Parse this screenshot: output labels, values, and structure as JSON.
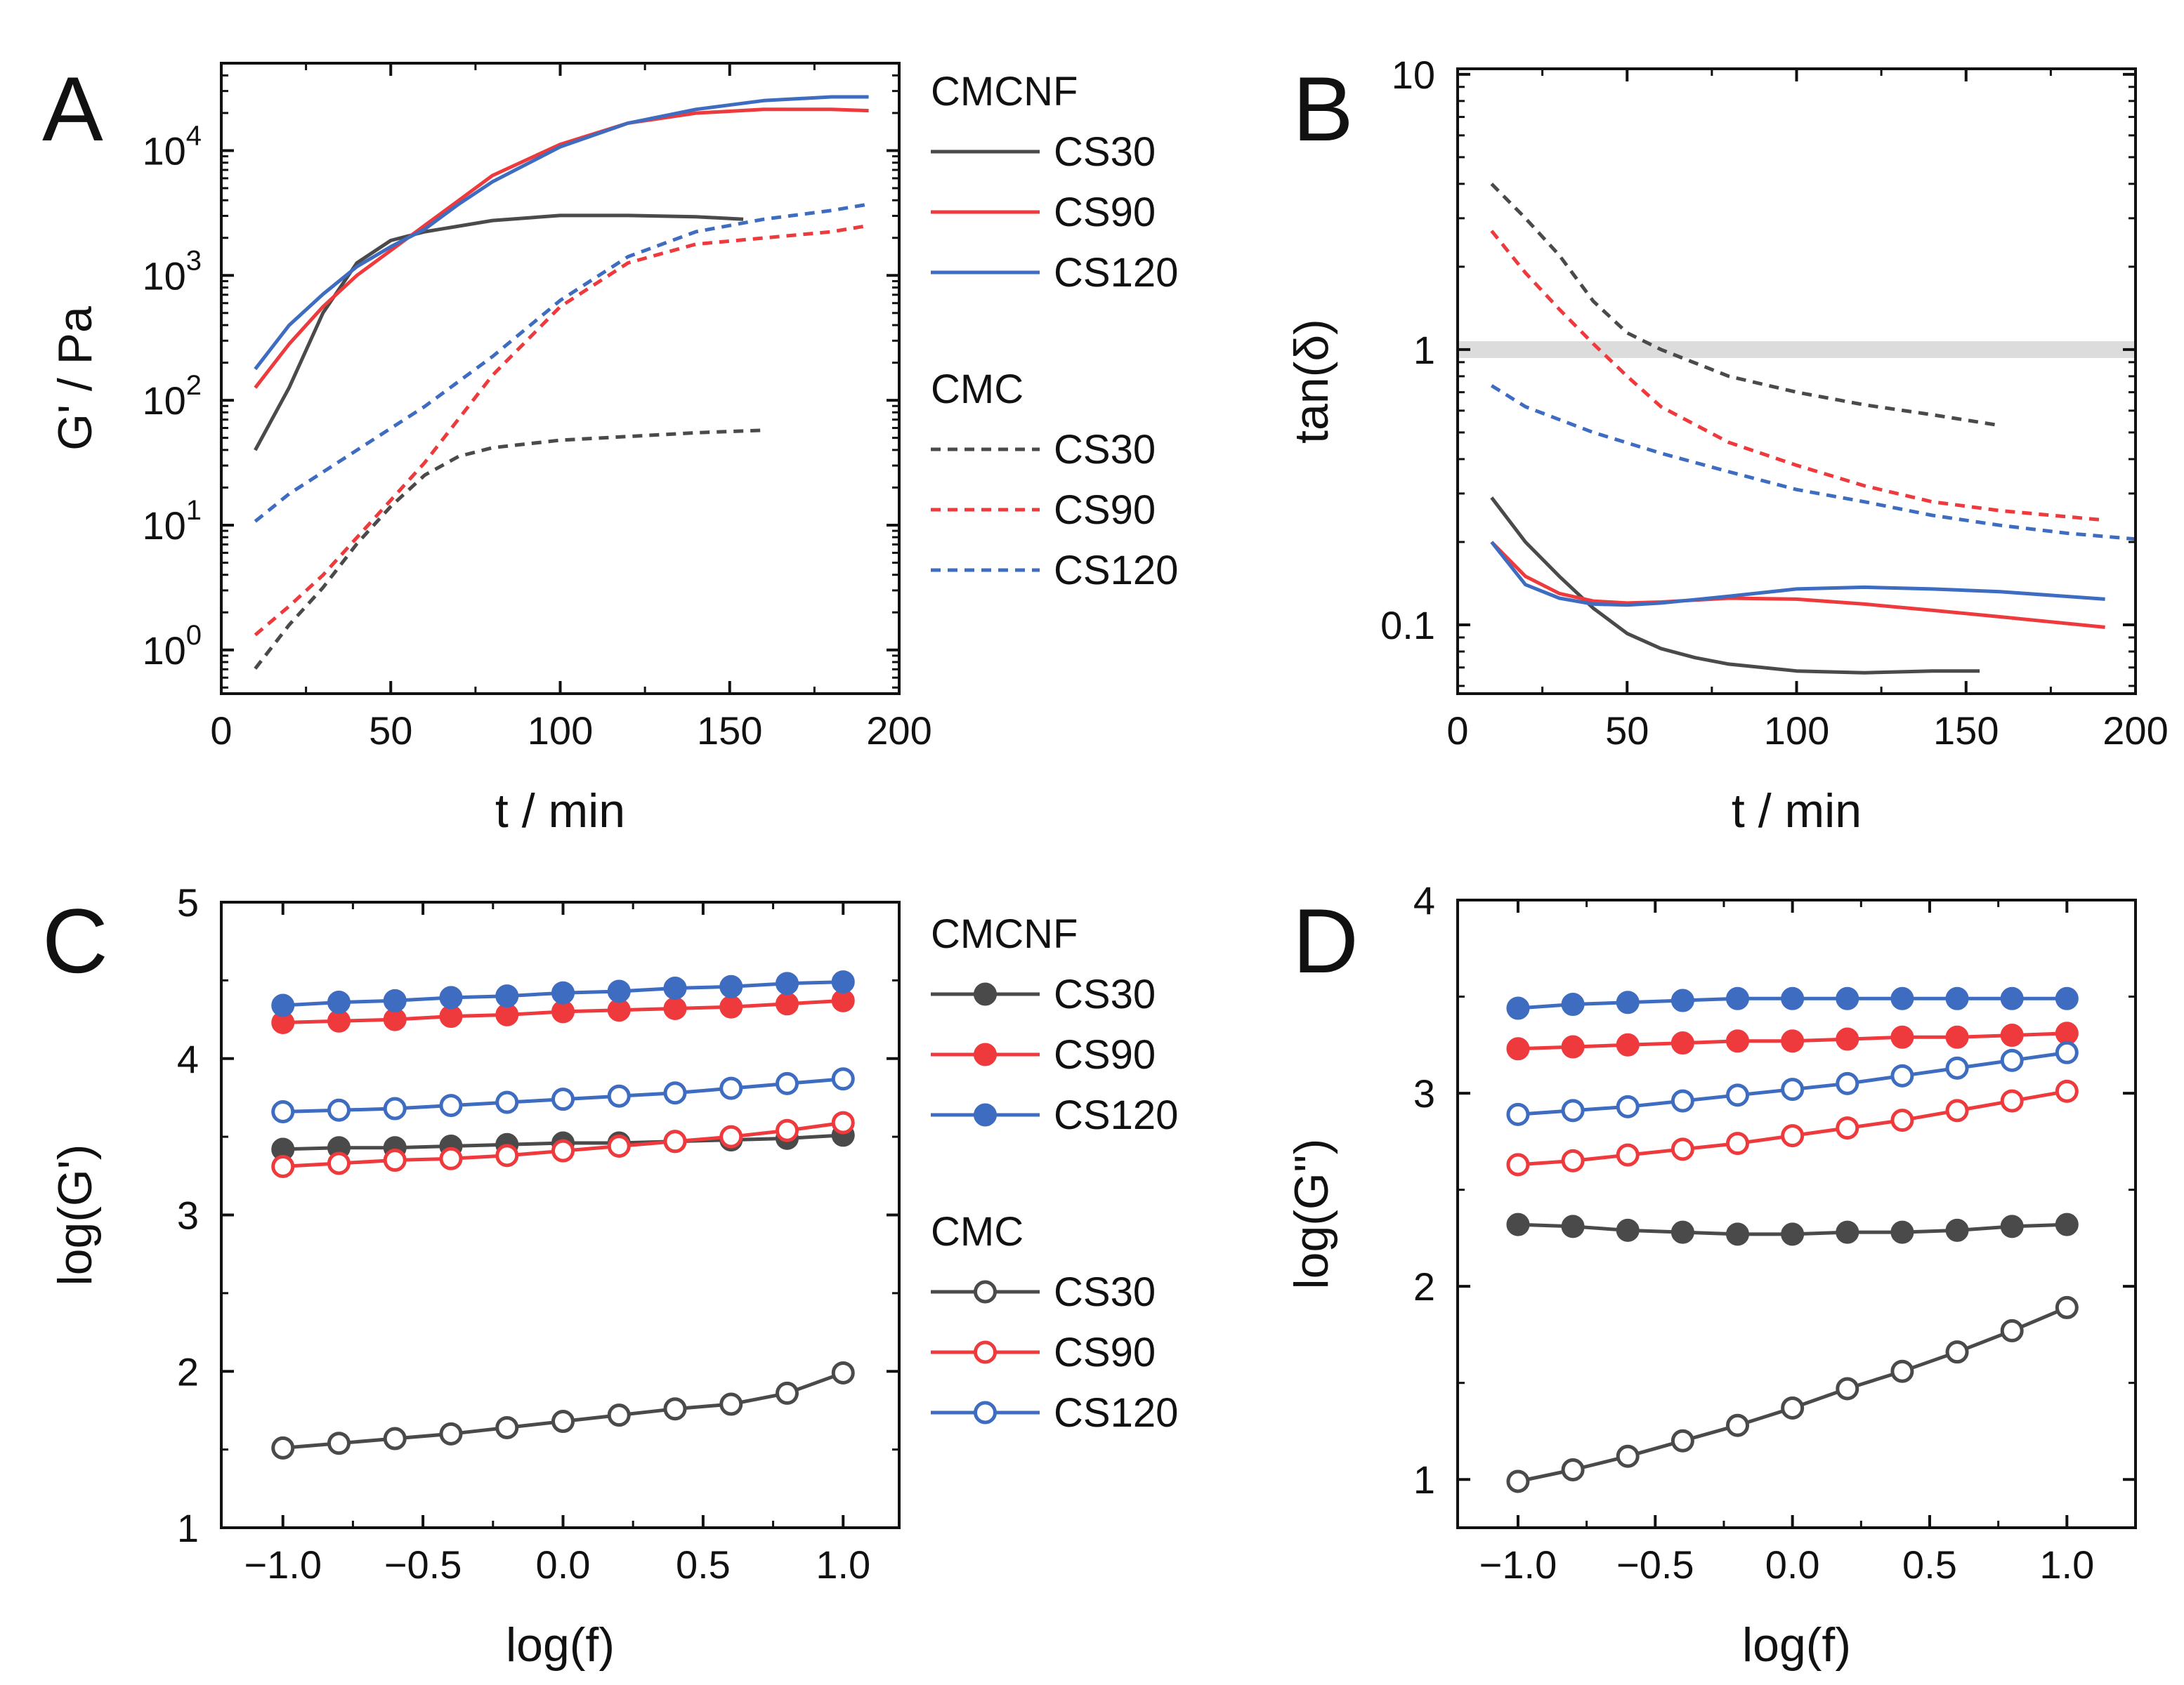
{
  "colors": {
    "CS30": "#4a4a4a",
    "CS90": "#ee3a3c",
    "CS120": "#3d6cc0",
    "band": "#dcdcdc"
  },
  "legend_AB": {
    "group1": "CMCNF",
    "group2": "CMC",
    "series": [
      "CS30",
      "CS90",
      "CS120"
    ]
  },
  "legend_CD": {
    "group1": "CMCNF",
    "group2": "CMC",
    "series": [
      "CS30",
      "CS90",
      "CS120"
    ]
  },
  "chart_data": [
    {
      "panel": "A",
      "type": "line",
      "xlabel": "t / min",
      "ylabel": "G' / Pa",
      "xlim": [
        0,
        200
      ],
      "ylim_log10": [
        -0.35,
        4.7
      ],
      "yscale": "log",
      "x_ticks": [
        "0",
        "50",
        "100",
        "150",
        "200"
      ],
      "x_tick_values": [
        0,
        50,
        100,
        150,
        200
      ],
      "y_ticks_base": [
        "10",
        "10",
        "10",
        "10",
        "10"
      ],
      "y_ticks_exp": [
        "0",
        "1",
        "2",
        "3",
        "4"
      ],
      "y_tick_values_log10": [
        0,
        1,
        2,
        3,
        4
      ],
      "series": [
        {
          "name": "CS30",
          "group": "CMCNF",
          "style": "solid",
          "x": [
            10,
            20,
            30,
            40,
            50,
            60,
            80,
            100,
            120,
            140,
            154
          ],
          "log10_y": [
            1.6,
            2.1,
            2.7,
            3.1,
            3.28,
            3.35,
            3.44,
            3.48,
            3.48,
            3.47,
            3.45
          ]
        },
        {
          "name": "CS90",
          "group": "CMCNF",
          "style": "solid",
          "x": [
            10,
            20,
            30,
            40,
            50,
            60,
            70,
            80,
            100,
            120,
            140,
            160,
            180,
            191
          ],
          "log10_y": [
            2.1,
            2.45,
            2.75,
            3.0,
            3.2,
            3.4,
            3.6,
            3.8,
            4.05,
            4.22,
            4.3,
            4.33,
            4.33,
            4.32
          ]
        },
        {
          "name": "CS120",
          "group": "CMCNF",
          "style": "solid",
          "x": [
            10,
            20,
            30,
            40,
            50,
            60,
            70,
            80,
            100,
            120,
            140,
            160,
            180,
            191
          ],
          "log10_y": [
            2.25,
            2.6,
            2.85,
            3.07,
            3.23,
            3.37,
            3.57,
            3.75,
            4.03,
            4.22,
            4.33,
            4.4,
            4.43,
            4.43
          ]
        },
        {
          "name": "CS30",
          "group": "CMC",
          "style": "dashed",
          "x": [
            10,
            20,
            30,
            40,
            50,
            60,
            70,
            80,
            100,
            120,
            140,
            160
          ],
          "log10_y": [
            -0.15,
            0.2,
            0.5,
            0.85,
            1.15,
            1.4,
            1.55,
            1.62,
            1.68,
            1.71,
            1.74,
            1.76
          ]
        },
        {
          "name": "CS90",
          "group": "CMC",
          "style": "dashed",
          "x": [
            10,
            20,
            30,
            40,
            50,
            60,
            70,
            80,
            100,
            120,
            140,
            160,
            180,
            191
          ],
          "log10_y": [
            0.12,
            0.35,
            0.6,
            0.9,
            1.2,
            1.5,
            1.85,
            2.2,
            2.75,
            3.1,
            3.25,
            3.3,
            3.35,
            3.4
          ]
        },
        {
          "name": "CS120",
          "group": "CMC",
          "style": "dashed",
          "x": [
            10,
            20,
            40,
            60,
            80,
            100,
            120,
            140,
            160,
            180,
            191
          ],
          "log10_y": [
            1.03,
            1.25,
            1.6,
            1.95,
            2.35,
            2.8,
            3.15,
            3.35,
            3.45,
            3.52,
            3.57
          ]
        }
      ]
    },
    {
      "panel": "B",
      "type": "line",
      "xlabel": "t / min",
      "ylabel": "tan(δ)",
      "xlim": [
        0,
        200
      ],
      "ylim_log10": [
        -1.25,
        1.02
      ],
      "yscale": "log",
      "band_value": 1,
      "x_ticks": [
        "0",
        "50",
        "100",
        "150",
        "200"
      ],
      "x_tick_values": [
        0,
        50,
        100,
        150,
        200
      ],
      "y_ticks": [
        "0.1",
        "1",
        "10"
      ],
      "y_tick_values": [
        0.1,
        1,
        10
      ],
      "series": [
        {
          "name": "CS30",
          "group": "CMCNF",
          "style": "solid",
          "x": [
            10,
            20,
            30,
            40,
            50,
            60,
            70,
            80,
            100,
            120,
            140,
            154
          ],
          "y": [
            0.29,
            0.2,
            0.15,
            0.115,
            0.093,
            0.082,
            0.076,
            0.072,
            0.068,
            0.067,
            0.068,
            0.068
          ]
        },
        {
          "name": "CS90",
          "group": "CMCNF",
          "style": "solid",
          "x": [
            10,
            20,
            30,
            40,
            50,
            60,
            80,
            100,
            120,
            140,
            160,
            191
          ],
          "y": [
            0.2,
            0.15,
            0.13,
            0.122,
            0.12,
            0.121,
            0.125,
            0.124,
            0.119,
            0.113,
            0.107,
            0.098
          ]
        },
        {
          "name": "CS120",
          "group": "CMCNF",
          "style": "solid",
          "x": [
            10,
            20,
            30,
            40,
            50,
            60,
            80,
            100,
            120,
            140,
            160,
            191
          ],
          "y": [
            0.2,
            0.14,
            0.125,
            0.119,
            0.118,
            0.12,
            0.127,
            0.135,
            0.137,
            0.135,
            0.132,
            0.124
          ]
        },
        {
          "name": "CS30",
          "group": "CMC",
          "style": "dashed",
          "x": [
            10,
            20,
            30,
            40,
            50,
            60,
            80,
            100,
            120,
            140,
            160
          ],
          "y": [
            4.0,
            3.0,
            2.2,
            1.5,
            1.15,
            1.0,
            0.8,
            0.7,
            0.63,
            0.58,
            0.53
          ]
        },
        {
          "name": "CS90",
          "group": "CMC",
          "style": "dashed",
          "x": [
            10,
            20,
            30,
            40,
            50,
            60,
            80,
            100,
            120,
            140,
            160,
            191
          ],
          "y": [
            2.7,
            1.9,
            1.4,
            1.05,
            0.8,
            0.62,
            0.46,
            0.38,
            0.32,
            0.28,
            0.26,
            0.24
          ]
        },
        {
          "name": "CS120",
          "group": "CMC",
          "style": "dashed",
          "x": [
            10,
            20,
            40,
            60,
            80,
            100,
            120,
            140,
            160,
            180,
            200
          ],
          "y": [
            0.74,
            0.62,
            0.5,
            0.42,
            0.36,
            0.31,
            0.28,
            0.25,
            0.23,
            0.215,
            0.205
          ]
        }
      ]
    },
    {
      "panel": "C",
      "type": "line",
      "xlabel": "log(f)",
      "ylabel": "log(G')",
      "xlim": [
        -1.22,
        1.2
      ],
      "ylim": [
        1,
        5
      ],
      "x_ticks": [
        "−1.0",
        "−0.5",
        "0.0",
        "0.5",
        "1.0"
      ],
      "x_tick_values": [
        -1,
        -0.5,
        0,
        0.5,
        1
      ],
      "y_ticks": [
        "1",
        "2",
        "3",
        "4",
        "5"
      ],
      "y_tick_values": [
        1,
        2,
        3,
        4,
        5
      ],
      "x": [
        -1.0,
        -0.8,
        -0.6,
        -0.4,
        -0.2,
        0.0,
        0.2,
        0.4,
        0.6,
        0.8,
        1.0
      ],
      "series": [
        {
          "name": "CS30",
          "group": "CMCNF",
          "marker": "filled",
          "values": [
            3.42,
            3.43,
            3.43,
            3.44,
            3.45,
            3.46,
            3.46,
            3.47,
            3.48,
            3.49,
            3.51
          ]
        },
        {
          "name": "CS90",
          "group": "CMCNF",
          "marker": "filled",
          "values": [
            4.23,
            4.24,
            4.25,
            4.27,
            4.28,
            4.3,
            4.31,
            4.32,
            4.33,
            4.35,
            4.37
          ]
        },
        {
          "name": "CS120",
          "group": "CMCNF",
          "marker": "filled",
          "values": [
            4.34,
            4.36,
            4.37,
            4.39,
            4.4,
            4.42,
            4.43,
            4.45,
            4.46,
            4.48,
            4.49
          ]
        },
        {
          "name": "CS30",
          "group": "CMC",
          "marker": "open",
          "values": [
            1.51,
            1.54,
            1.57,
            1.6,
            1.64,
            1.68,
            1.72,
            1.76,
            1.79,
            1.86,
            1.99
          ]
        },
        {
          "name": "CS90",
          "group": "CMC",
          "marker": "open",
          "values": [
            3.31,
            3.33,
            3.35,
            3.36,
            3.38,
            3.41,
            3.44,
            3.47,
            3.5,
            3.54,
            3.59
          ]
        },
        {
          "name": "CS120",
          "group": "CMC",
          "marker": "open",
          "values": [
            3.66,
            3.67,
            3.68,
            3.7,
            3.72,
            3.74,
            3.76,
            3.78,
            3.81,
            3.84,
            3.87
          ]
        }
      ]
    },
    {
      "panel": "D",
      "type": "line",
      "xlabel": "log(f)",
      "ylabel": "log(G'')",
      "xlim": [
        -1.22,
        1.25
      ],
      "ylim": [
        0.75,
        4
      ],
      "x_ticks": [
        "−1.0",
        "−0.5",
        "0.0",
        "0.5",
        "1.0"
      ],
      "x_tick_values": [
        -1,
        -0.5,
        0,
        0.5,
        1
      ],
      "y_ticks": [
        "1",
        "2",
        "3",
        "4"
      ],
      "y_tick_values": [
        1,
        2,
        3,
        4
      ],
      "x": [
        -1.0,
        -0.8,
        -0.6,
        -0.4,
        -0.2,
        0.0,
        0.2,
        0.4,
        0.6,
        0.8,
        1.0
      ],
      "series": [
        {
          "name": "CS30",
          "group": "CMCNF",
          "marker": "filled",
          "values": [
            2.32,
            2.31,
            2.29,
            2.28,
            2.27,
            2.27,
            2.28,
            2.28,
            2.29,
            2.31,
            2.32
          ]
        },
        {
          "name": "CS90",
          "group": "CMCNF",
          "marker": "filled",
          "values": [
            3.23,
            3.24,
            3.25,
            3.26,
            3.27,
            3.27,
            3.28,
            3.29,
            3.29,
            3.3,
            3.31
          ]
        },
        {
          "name": "CS120",
          "group": "CMCNF",
          "marker": "filled",
          "values": [
            3.44,
            3.46,
            3.47,
            3.48,
            3.49,
            3.49,
            3.49,
            3.49,
            3.49,
            3.49,
            3.49
          ]
        },
        {
          "name": "CS30",
          "group": "CMC",
          "marker": "open",
          "values": [
            0.99,
            1.05,
            1.12,
            1.2,
            1.28,
            1.37,
            1.47,
            1.56,
            1.66,
            1.77,
            1.89
          ]
        },
        {
          "name": "CS90",
          "group": "CMC",
          "marker": "open",
          "values": [
            2.63,
            2.65,
            2.68,
            2.71,
            2.74,
            2.78,
            2.82,
            2.86,
            2.91,
            2.96,
            3.01
          ]
        },
        {
          "name": "CS120",
          "group": "CMC",
          "marker": "open",
          "values": [
            2.89,
            2.91,
            2.93,
            2.96,
            2.99,
            3.02,
            3.05,
            3.09,
            3.13,
            3.17,
            3.21
          ]
        }
      ]
    }
  ]
}
